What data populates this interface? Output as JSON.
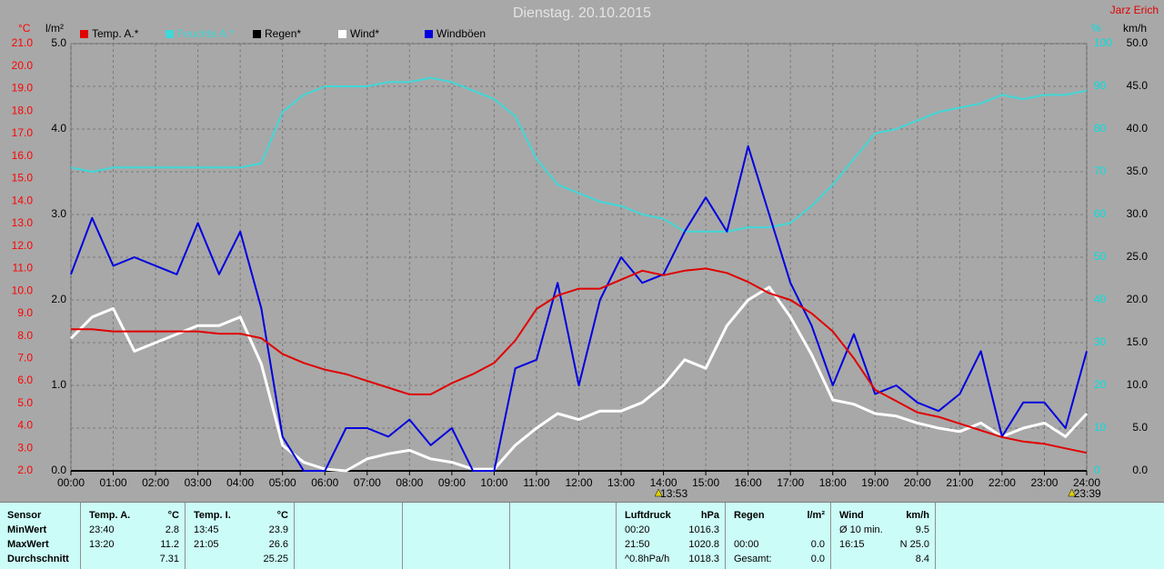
{
  "chart_data": {
    "type": "line",
    "title": "Dienstag. 20.10.2015",
    "corner_text": "Jarz Erich",
    "x": [
      0,
      0.5,
      1,
      1.5,
      2,
      2.5,
      3,
      3.5,
      4,
      4.5,
      5,
      5.5,
      6,
      6.5,
      7,
      7.5,
      8,
      8.5,
      9,
      9.5,
      10,
      10.5,
      11,
      11.5,
      12,
      12.5,
      13,
      13.5,
      14,
      14.5,
      15,
      15.5,
      16,
      16.5,
      17,
      17.5,
      18,
      18.5,
      19,
      19.5,
      20,
      20.5,
      21,
      21.5,
      22,
      22.5,
      23,
      23.5,
      24
    ],
    "xlim": [
      0,
      24
    ],
    "xticks": [
      {
        "value": 0,
        "label": "00:00"
      },
      {
        "value": 1,
        "label": "01:00"
      },
      {
        "value": 2,
        "label": "02:00"
      },
      {
        "value": 3,
        "label": "03:00"
      },
      {
        "value": 4,
        "label": "04:00"
      },
      {
        "value": 5,
        "label": "05:00"
      },
      {
        "value": 6,
        "label": "06:00"
      },
      {
        "value": 7,
        "label": "07:00"
      },
      {
        "value": 8,
        "label": "08:00"
      },
      {
        "value": 9,
        "label": "09:00"
      },
      {
        "value": 10,
        "label": "10:00"
      },
      {
        "value": 11,
        "label": "11:00"
      },
      {
        "value": 12,
        "label": "12:00"
      },
      {
        "value": 13,
        "label": "13:00"
      },
      {
        "value": 14,
        "label": "14:00"
      },
      {
        "value": 15,
        "label": "15:00"
      },
      {
        "value": 16,
        "label": "16:00"
      },
      {
        "value": 17,
        "label": "17:00"
      },
      {
        "value": 18,
        "label": "18:00"
      },
      {
        "value": 19,
        "label": "19:00"
      },
      {
        "value": 20,
        "label": "20:00"
      },
      {
        "value": 21,
        "label": "21:00"
      },
      {
        "value": 22,
        "label": "22:00"
      },
      {
        "value": 23,
        "label": "23:00"
      },
      {
        "value": 24,
        "label": "24:00"
      }
    ],
    "axes": [
      {
        "label": "°C",
        "color": "#ff0000",
        "side": "left",
        "lim": [
          2,
          21
        ],
        "ticks": [
          {
            "value": 2,
            "label": "2.0"
          },
          {
            "value": 3,
            "label": "3.0"
          },
          {
            "value": 4,
            "label": "4.0"
          },
          {
            "value": 5,
            "label": "5.0"
          },
          {
            "value": 6,
            "label": "6.0"
          },
          {
            "value": 7,
            "label": "7.0"
          },
          {
            "value": 8,
            "label": "8.0"
          },
          {
            "value": 9,
            "label": "9.0"
          },
          {
            "value": 10,
            "label": "10.0"
          },
          {
            "value": 11,
            "label": "11.0"
          },
          {
            "value": 12,
            "label": "12.0"
          },
          {
            "value": 13,
            "label": "13.0"
          },
          {
            "value": 14,
            "label": "14.0"
          },
          {
            "value": 15,
            "label": "15.0"
          },
          {
            "value": 16,
            "label": "16.0"
          },
          {
            "value": 17,
            "label": "17.0"
          },
          {
            "value": 18,
            "label": "18.0"
          },
          {
            "value": 19,
            "label": "19.0"
          },
          {
            "value": 20,
            "label": "20.0"
          },
          {
            "value": 21,
            "label": "21.0"
          }
        ]
      },
      {
        "label": "l/m²",
        "color": "#000000",
        "side": "left",
        "lim": [
          0,
          5
        ],
        "ticks": [
          {
            "value": 0,
            "label": "0.0"
          },
          {
            "value": 1,
            "label": "1.0"
          },
          {
            "value": 2,
            "label": "2.0"
          },
          {
            "value": 3,
            "label": "3.0"
          },
          {
            "value": 4,
            "label": "4.0"
          },
          {
            "value": 5,
            "label": "5.0"
          }
        ]
      },
      {
        "label": "%",
        "color": "#00e0e0",
        "side": "right",
        "lim": [
          0,
          100
        ],
        "grid": true,
        "ticks": [
          0,
          10,
          20,
          30,
          40,
          50,
          60,
          70,
          80,
          90,
          100
        ]
      },
      {
        "label": "km/h",
        "color": "#000000",
        "side": "right",
        "lim": [
          0,
          50
        ],
        "ticks": [
          {
            "value": 0,
            "label": "0.0"
          },
          {
            "value": 5,
            "label": "5.0"
          },
          {
            "value": 10,
            "label": "10.0"
          },
          {
            "value": 15,
            "label": "15.0"
          },
          {
            "value": 20,
            "label": "20.0"
          },
          {
            "value": 25,
            "label": "25.0"
          },
          {
            "value": 30,
            "label": "30.0"
          },
          {
            "value": 35,
            "label": "35.0"
          },
          {
            "value": 40,
            "label": "40.0"
          },
          {
            "value": 45,
            "label": "45.0"
          },
          {
            "value": 50,
            "label": "50.0"
          }
        ]
      }
    ],
    "series": [
      {
        "name": "Temp. A.*",
        "color": "#e00000",
        "axis": 0,
        "values": [
          8.3,
          8.3,
          8.2,
          8.2,
          8.2,
          8.2,
          8.2,
          8.1,
          8.1,
          7.9,
          7.2,
          6.8,
          6.5,
          6.3,
          6.0,
          5.7,
          5.4,
          5.4,
          5.9,
          6.3,
          6.8,
          7.8,
          9.2,
          9.8,
          10.1,
          10.1,
          10.5,
          10.9,
          10.7,
          10.9,
          11.0,
          10.8,
          10.4,
          9.9,
          9.6,
          9.0,
          8.2,
          7.0,
          5.6,
          5.1,
          4.6,
          4.4,
          4.1,
          3.8,
          3.5,
          3.3,
          3.2,
          3.0,
          2.8
        ]
      },
      {
        "name": "Feuchte A.*",
        "color": "#40d8d8",
        "axis": 2,
        "values": [
          71,
          70,
          71,
          71,
          71,
          71,
          71,
          71,
          71,
          72,
          84,
          88,
          90,
          90,
          90,
          91,
          91,
          92,
          91,
          89,
          87,
          83,
          73,
          67,
          65,
          63,
          62,
          60,
          59,
          56,
          56,
          56,
          57,
          57,
          58,
          62,
          67,
          73,
          79,
          80,
          82,
          84,
          85,
          86,
          88,
          87,
          88,
          88,
          89
        ]
      },
      {
        "name": "Regen*",
        "color": "#000000",
        "axis": 1,
        "values": [
          0,
          0,
          0,
          0,
          0,
          0,
          0,
          0,
          0,
          0,
          0,
          0,
          0,
          0,
          0,
          0,
          0,
          0,
          0,
          0,
          0,
          0,
          0,
          0,
          0,
          0,
          0,
          0,
          0,
          0,
          0,
          0,
          0,
          0,
          0,
          0,
          0,
          0,
          0,
          0,
          0,
          0,
          0,
          0,
          0,
          0,
          0,
          0,
          0
        ]
      },
      {
        "name": "Wind*",
        "color": "#ffffff",
        "axis": 3,
        "values": [
          15.5,
          18,
          19,
          14,
          15,
          16,
          17,
          17,
          18,
          12.5,
          3,
          1,
          0.2,
          0,
          1.4,
          2,
          2.4,
          1.4,
          1,
          0.2,
          0.2,
          3,
          5,
          6.7,
          6,
          7,
          7,
          8,
          10,
          13,
          12,
          17,
          20,
          21.5,
          18,
          13.6,
          8.3,
          7.8,
          6.7,
          6.4,
          5.6,
          5,
          4.6,
          5.6,
          4,
          5,
          5.6,
          4,
          6.7
        ]
      },
      {
        "name": "Windböen",
        "color": "#0000e0",
        "axis": 3,
        "values": [
          23,
          29.6,
          24,
          25,
          24,
          23,
          29,
          23,
          28,
          19,
          4,
          0,
          0,
          5,
          5,
          4,
          6,
          3,
          5,
          0,
          0,
          12,
          13,
          22,
          10,
          20,
          25,
          22,
          23,
          28,
          32,
          28,
          38,
          30,
          22,
          17,
          10,
          16,
          9,
          10,
          8,
          7,
          9,
          14,
          4,
          8,
          8,
          5,
          14
        ]
      }
    ],
    "annotations": [
      {
        "text": "13:53",
        "x": 13.883
      },
      {
        "text": "23:39",
        "x": 23.65
      }
    ]
  },
  "table": {
    "header": [
      {
        "left": "Sensor"
      },
      {
        "left": "Temp. A.",
        "right": "°C"
      },
      {
        "left": "Temp. I.",
        "right": "°C"
      },
      {},
      {},
      {},
      {
        "left": "Luftdruck",
        "right": "hPa"
      },
      {
        "left": "Regen",
        "right": "l/m²"
      },
      {
        "left": "Wind",
        "right": "km/h"
      },
      {}
    ],
    "rows": [
      [
        {
          "left": "MinWert"
        },
        {
          "left": "23:40",
          "right": "2.8"
        },
        {
          "left": "13:45",
          "right": "23.9"
        },
        {},
        {},
        {},
        {
          "left": "00:20",
          "right": "1016.3"
        },
        {},
        {
          "left": "Ø 10 min.",
          "right": "9.5"
        },
        {}
      ],
      [
        {
          "left": "MaxWert"
        },
        {
          "left": "13:20",
          "right": "11.2"
        },
        {
          "left": "21:05",
          "right": "26.6"
        },
        {},
        {},
        {},
        {
          "left": "21:50",
          "right": "1020.8"
        },
        {
          "left": "00:00",
          "right": "0.0"
        },
        {
          "left": "16:15",
          "right": "N 25.0"
        },
        {}
      ],
      [
        {
          "left": "Durchschnitt"
        },
        {
          "right": "7.31"
        },
        {
          "right": "25.25"
        },
        {},
        {},
        {},
        {
          "left": "^0.8hPa/h",
          "right": "1018.3"
        },
        {
          "left": "Gesamt:",
          "right": "0.0"
        },
        {
          "right": "8.4"
        },
        {}
      ]
    ]
  }
}
